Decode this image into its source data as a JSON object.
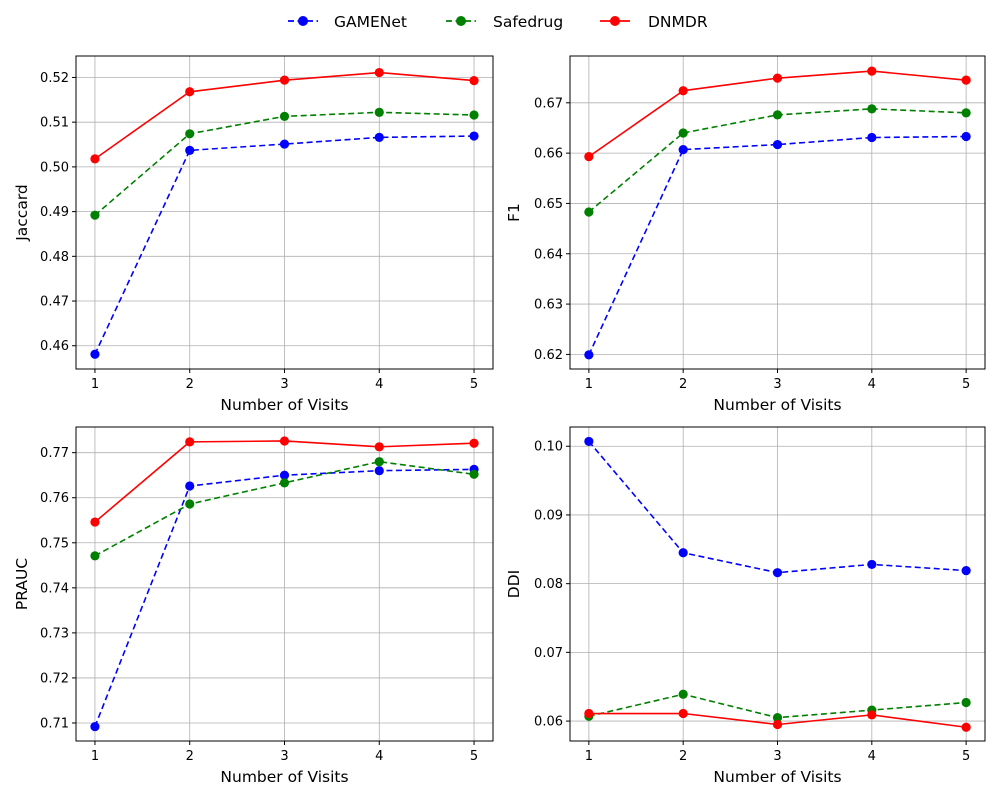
{
  "legend": {
    "entries": [
      {
        "name": "GAMENet",
        "color": "#0000ff",
        "dash": "dashed"
      },
      {
        "name": "Safedrug",
        "color": "#008000",
        "dash": "dashed"
      },
      {
        "name": "DNMDR",
        "color": "#ff0000",
        "dash": "solid"
      }
    ]
  },
  "chart_data": [
    {
      "type": "line",
      "id": "jaccard",
      "title": "",
      "xlabel": "Number of Visits",
      "ylabel": "Jaccard",
      "x": [
        1,
        2,
        3,
        4,
        5
      ],
      "xticks": [
        "1",
        "2",
        "3",
        "4",
        "5"
      ],
      "xlim": [
        0.8,
        5.2
      ],
      "ylim": [
        0.4548,
        0.5248
      ],
      "yticks": [
        0.46,
        0.47,
        0.48,
        0.49,
        0.5,
        0.51,
        0.52
      ],
      "ytick_labels": [
        "0.46",
        "0.47",
        "0.48",
        "0.49",
        "0.50",
        "0.51",
        "0.52"
      ],
      "grid": true,
      "series": [
        {
          "name": "GAMENet",
          "color": "#0000ff",
          "dash": "dashed",
          "values": [
            0.4581,
            0.5037,
            0.5051,
            0.5066,
            0.5069
          ]
        },
        {
          "name": "Safedrug",
          "color": "#008000",
          "dash": "dashed",
          "values": [
            0.4892,
            0.5074,
            0.5113,
            0.5122,
            0.5116
          ]
        },
        {
          "name": "DNMDR",
          "color": "#ff0000",
          "dash": "solid",
          "values": [
            0.5018,
            0.5168,
            0.5194,
            0.5211,
            0.5193
          ]
        }
      ]
    },
    {
      "type": "line",
      "id": "f1",
      "title": "",
      "xlabel": "Number of Visits",
      "ylabel": "F1",
      "x": [
        1,
        2,
        3,
        4,
        5
      ],
      "xticks": [
        "1",
        "2",
        "3",
        "4",
        "5"
      ],
      "xlim": [
        0.8,
        5.2
      ],
      "ylim": [
        0.6171,
        0.6793
      ],
      "yticks": [
        0.62,
        0.63,
        0.64,
        0.65,
        0.66,
        0.67
      ],
      "ytick_labels": [
        "0.62",
        "0.63",
        "0.64",
        "0.65",
        "0.66",
        "0.67"
      ],
      "grid": true,
      "series": [
        {
          "name": "GAMENet",
          "color": "#0000ff",
          "dash": "dashed",
          "values": [
            0.6199,
            0.6607,
            0.6617,
            0.6631,
            0.6633
          ]
        },
        {
          "name": "Safedrug",
          "color": "#008000",
          "dash": "dashed",
          "values": [
            0.6483,
            0.664,
            0.6676,
            0.6688,
            0.668
          ]
        },
        {
          "name": "DNMDR",
          "color": "#ff0000",
          "dash": "solid",
          "values": [
            0.6593,
            0.6724,
            0.6749,
            0.6763,
            0.6745
          ]
        }
      ]
    },
    {
      "type": "line",
      "id": "prauc",
      "title": "",
      "xlabel": "Number of Visits",
      "ylabel": "PRAUC",
      "x": [
        1,
        2,
        3,
        4,
        5
      ],
      "xticks": [
        "1",
        "2",
        "3",
        "4",
        "5"
      ],
      "xlim": [
        0.8,
        5.2
      ],
      "ylim": [
        0.706,
        0.7757
      ],
      "yticks": [
        0.71,
        0.72,
        0.73,
        0.74,
        0.75,
        0.76,
        0.77
      ],
      "ytick_labels": [
        "0.71",
        "0.72",
        "0.73",
        "0.74",
        "0.75",
        "0.76",
        "0.77"
      ],
      "grid": true,
      "series": [
        {
          "name": "GAMENet",
          "color": "#0000ff",
          "dash": "dashed",
          "values": [
            0.7092,
            0.7626,
            0.765,
            0.766,
            0.7663
          ]
        },
        {
          "name": "Safedrug",
          "color": "#008000",
          "dash": "dashed",
          "values": [
            0.7471,
            0.7586,
            0.7633,
            0.768,
            0.7652
          ]
        },
        {
          "name": "DNMDR",
          "color": "#ff0000",
          "dash": "solid",
          "values": [
            0.7546,
            0.7724,
            0.7726,
            0.7713,
            0.7721
          ]
        }
      ]
    },
    {
      "type": "line",
      "id": "ddi",
      "title": "",
      "xlabel": "Number of Visits",
      "ylabel": "DDI",
      "x": [
        1,
        2,
        3,
        4,
        5
      ],
      "xticks": [
        "1",
        "2",
        "3",
        "4",
        "5"
      ],
      "xlim": [
        0.8,
        5.2
      ],
      "ylim": [
        0.0571,
        0.1028
      ],
      "yticks": [
        0.06,
        0.07,
        0.08,
        0.09,
        0.1
      ],
      "ytick_labels": [
        "0.06",
        "0.07",
        "0.08",
        "0.09",
        "0.10"
      ],
      "grid": true,
      "series": [
        {
          "name": "GAMENet",
          "color": "#0000ff",
          "dash": "dashed",
          "values": [
            0.1007,
            0.0845,
            0.0816,
            0.0828,
            0.0819
          ]
        },
        {
          "name": "Safedrug",
          "color": "#008000",
          "dash": "dashed",
          "values": [
            0.0607,
            0.0639,
            0.0605,
            0.0616,
            0.0627
          ]
        },
        {
          "name": "DNMDR",
          "color": "#ff0000",
          "dash": "solid",
          "values": [
            0.0611,
            0.0611,
            0.0595,
            0.0609,
            0.0591
          ]
        }
      ]
    }
  ]
}
